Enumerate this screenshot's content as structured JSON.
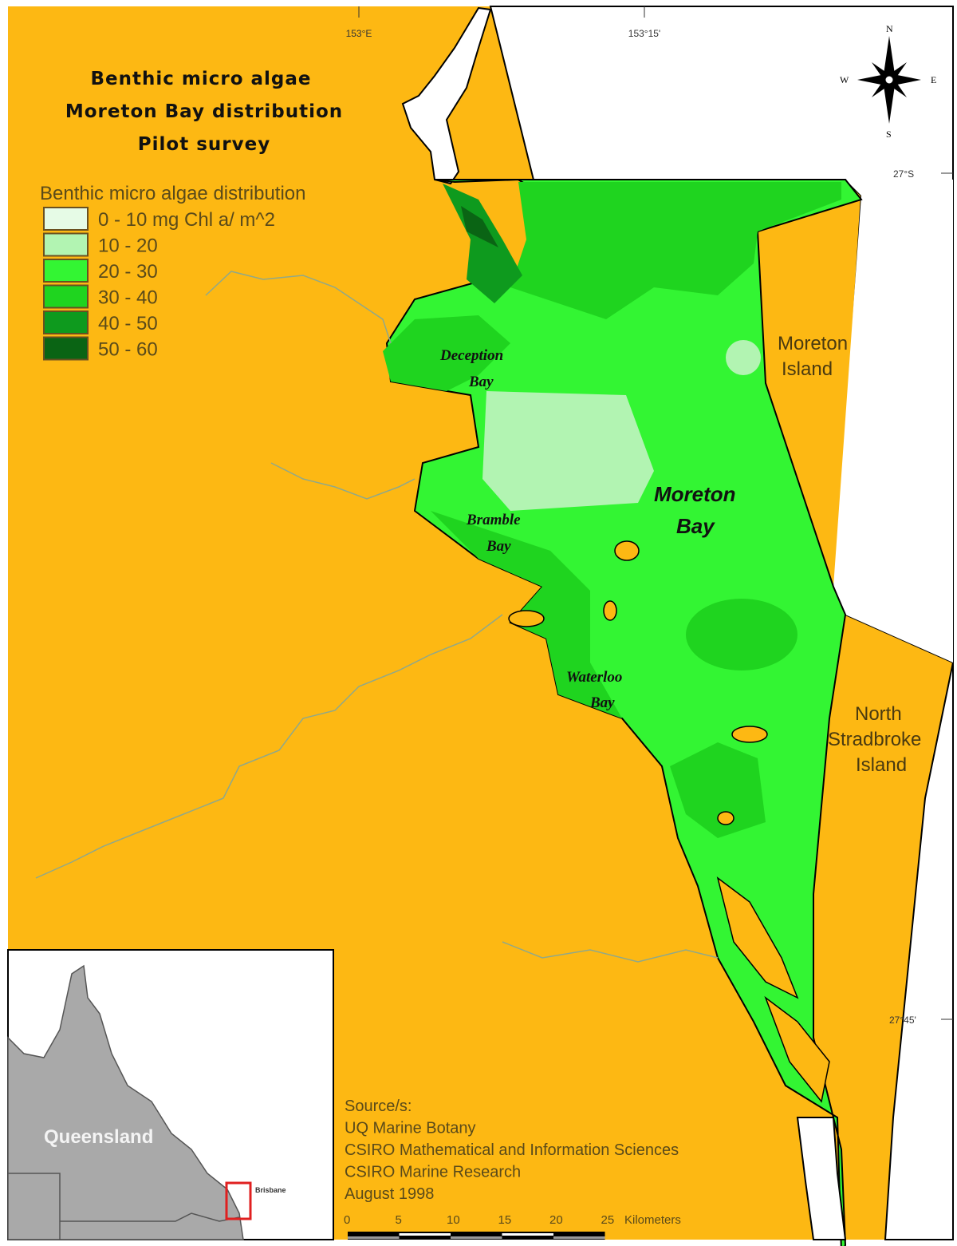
{
  "title_lines": [
    "Benthic micro algae",
    "Moreton Bay distribution",
    "Pilot survey"
  ],
  "legend": {
    "title": "Benthic micro algae distribution",
    "items": [
      {
        "label": "0 - 10 mg Chl a/ m^2",
        "color": "#e6fbe6"
      },
      {
        "label": "10 - 20",
        "color": "#b2f4b2"
      },
      {
        "label": "20 - 30",
        "color": "#33f533"
      },
      {
        "label": "30 - 40",
        "color": "#1fd41f"
      },
      {
        "label": "40 - 50",
        "color": "#0e9a1e"
      },
      {
        "label": "50 - 60",
        "color": "#0a6414"
      }
    ]
  },
  "graticule": {
    "lon": [
      "153°E",
      "153°15'"
    ],
    "lat": [
      "27°S",
      "27°45'"
    ]
  },
  "compass": {
    "n": "N",
    "s": "S",
    "e": "E",
    "w": "W"
  },
  "places": {
    "moreton_island": [
      "Moreton",
      "Island"
    ],
    "north_stradbroke": [
      "North",
      "Stradbroke",
      "Island"
    ],
    "moreton_bay": [
      "Moreton",
      "Bay"
    ],
    "deception_bay": [
      "Deception",
      "Bay"
    ],
    "bramble_bay": [
      "Bramble",
      "Bay"
    ],
    "waterloo_bay": [
      "Waterloo",
      "Bay"
    ]
  },
  "inset": {
    "state": "Queensland",
    "city": "Brisbane"
  },
  "sources": [
    "Source/s:",
    "UQ Marine Botany",
    "CSIRO Mathematical and Information Sciences",
    "CSIRO Marine Research",
    "August 1998"
  ],
  "scale": {
    "ticks": [
      "0",
      "5",
      "10",
      "15",
      "20",
      "25"
    ],
    "unit": "Kilometers"
  },
  "colors": {
    "land": "#fdb813",
    "water": "#ffffff",
    "inset_land": "#a9a9a9",
    "inset_box": "#e02020"
  }
}
